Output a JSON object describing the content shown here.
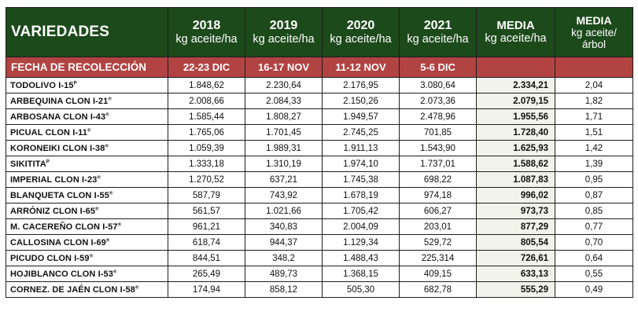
{
  "header": {
    "variedades": "VARIEDADES",
    "years": [
      {
        "year": "2018",
        "unit": "kg aceite/ha"
      },
      {
        "year": "2019",
        "unit": "kg aceite/ha"
      },
      {
        "year": "2020",
        "unit": "kg aceite/ha"
      },
      {
        "year": "2021",
        "unit": "kg aceite/ha"
      }
    ],
    "media": {
      "title": "MEDIA",
      "unit": "kg aceite/ha"
    },
    "media2": {
      "title": "MEDIA",
      "unit_line1": "kg aceite/",
      "unit_line2": "árbol"
    }
  },
  "harvest": {
    "label": "FECHA DE RECOLECCIÓN",
    "dates": [
      "22-23 DIC",
      "16-17 NOV",
      "11-12 NOV",
      "5-6 DIC"
    ]
  },
  "colors": {
    "header_bg": "#1d4a1b",
    "subheader_bg": "#b24343",
    "media_bg": "#f1f2ea"
  },
  "rows": [
    {
      "name": "TODOLIVO I-15",
      "mark": "P",
      "v2018": "1.848,62",
      "v2019": "2.230,64",
      "v2020": "2.176,95",
      "v2021": "3.080,64",
      "media": "2.334,21",
      "media_tree": "2,04"
    },
    {
      "name": "ARBEQUINA CLON I-21",
      "mark": "®",
      "v2018": "2.008,66",
      "v2019": "2.084,33",
      "v2020": "2.150,26",
      "v2021": "2.073,36",
      "media": "2.079,15",
      "media_tree": "1,82"
    },
    {
      "name": "ARBOSANA CLON I-43",
      "mark": "®",
      "v2018": "1.585,44",
      "v2019": "1.808,27",
      "v2020": "1.949,57",
      "v2021": "2.478,96",
      "media": "1.955,56",
      "media_tree": "1,71"
    },
    {
      "name": "PICUAL CLON I-11",
      "mark": "®",
      "v2018": "1.765,06",
      "v2019": "1.701,45",
      "v2020": "2.745,25",
      "v2021": "701,85",
      "media": "1.728,40",
      "media_tree": "1,51"
    },
    {
      "name": "KORONEIKI CLON I-38",
      "mark": "®",
      "v2018": "1.059,39",
      "v2019": "1.989,31",
      "v2020": "1.911,13",
      "v2021": "1.543,90",
      "media": "1.625,93",
      "media_tree": "1,42"
    },
    {
      "name": "SIKITITA",
      "mark": "P",
      "v2018": "1.333,18",
      "v2019": "1.310,19",
      "v2020": "1.974,10",
      "v2021": "1.737,01",
      "media": "1.588,62",
      "media_tree": "1,39"
    },
    {
      "name": "IMPERIAL CLON I-23",
      "mark": "®",
      "v2018": "1.270,52",
      "v2019": "637,21",
      "v2020": "1.745,38",
      "v2021": "698,22",
      "media": "1.087,83",
      "media_tree": "0,95"
    },
    {
      "name": "BLANQUETA CLON I-55",
      "mark": "®",
      "v2018": "587,79",
      "v2019": "743,92",
      "v2020": "1.678,19",
      "v2021": "974,18",
      "media": "996,02",
      "media_tree": "0,87"
    },
    {
      "name": "ARRÓNIZ CLON I-65",
      "mark": "®",
      "v2018": "561,57",
      "v2019": "1.021,66",
      "v2020": "1.705,42",
      "v2021": "606,27",
      "media": "973,73",
      "media_tree": "0,85"
    },
    {
      "name": "M. CACEREÑO CLON I-57",
      "mark": "®",
      "v2018": "961,21",
      "v2019": "340,83",
      "v2020": "2.004,09",
      "v2021": "203,01",
      "media": "877,29",
      "media_tree": "0,77"
    },
    {
      "name": "CALLOSINA CLON I-69",
      "mark": "®",
      "v2018": "618,74",
      "v2019": "944,37",
      "v2020": "1.129,34",
      "v2021": "529,72",
      "media": "805,54",
      "media_tree": "0,70"
    },
    {
      "name": "PICUDO CLON I-59",
      "mark": "®",
      "v2018": "844,51",
      "v2019": "348,2",
      "v2020": "1.488,43",
      "v2021": "225,314",
      "media": "726,61",
      "media_tree": "0,64"
    },
    {
      "name": "HOJIBLANCO CLON I-53",
      "mark": "®",
      "v2018": "265,49",
      "v2019": "489,73",
      "v2020": "1.368,15",
      "v2021": "409,15",
      "media": "633,13",
      "media_tree": "0,55"
    },
    {
      "name": "CORNEZ. DE JAÉN CLON I-58",
      "mark": "®",
      "v2018": "174,94",
      "v2019": "858,12",
      "v2020": "505,30",
      "v2021": "682,78",
      "media": "555,29",
      "media_tree": "0,49"
    }
  ]
}
